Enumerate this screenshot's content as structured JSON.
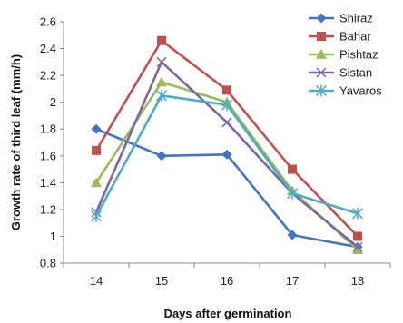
{
  "chart_data": {
    "type": "line",
    "title": "",
    "xlabel": "Days after germination",
    "ylabel": "Growth rate of third leaf (mm/h)",
    "categories": [
      "14",
      "15",
      "16",
      "17",
      "18"
    ],
    "ylim": [
      0.8,
      2.6
    ],
    "yticks": [
      "0.8",
      "1",
      "1.2",
      "1.4",
      "1.6",
      "1.8",
      "2",
      "2.2",
      "2.4",
      "2.6"
    ],
    "grid": false,
    "legend_position": "right",
    "series": [
      {
        "name": "Shiraz",
        "color": "#4472C4",
        "marker": "diamond",
        "values": [
          1.8,
          1.6,
          1.61,
          1.01,
          0.92
        ]
      },
      {
        "name": "Bahar",
        "color": "#C0504D",
        "marker": "square",
        "values": [
          1.64,
          2.46,
          2.09,
          1.5,
          1.0
        ]
      },
      {
        "name": "Pishtaz",
        "color": "#9BBB59",
        "marker": "triangle",
        "values": [
          1.4,
          2.15,
          2.0,
          1.34,
          0.9
        ]
      },
      {
        "name": "Sistan",
        "color": "#8064A2",
        "marker": "x",
        "values": [
          1.18,
          2.3,
          1.85,
          1.32,
          0.92
        ]
      },
      {
        "name": "Yavaros",
        "color": "#4BACC6",
        "marker": "star",
        "values": [
          1.15,
          2.05,
          1.98,
          1.32,
          1.17
        ]
      }
    ]
  }
}
